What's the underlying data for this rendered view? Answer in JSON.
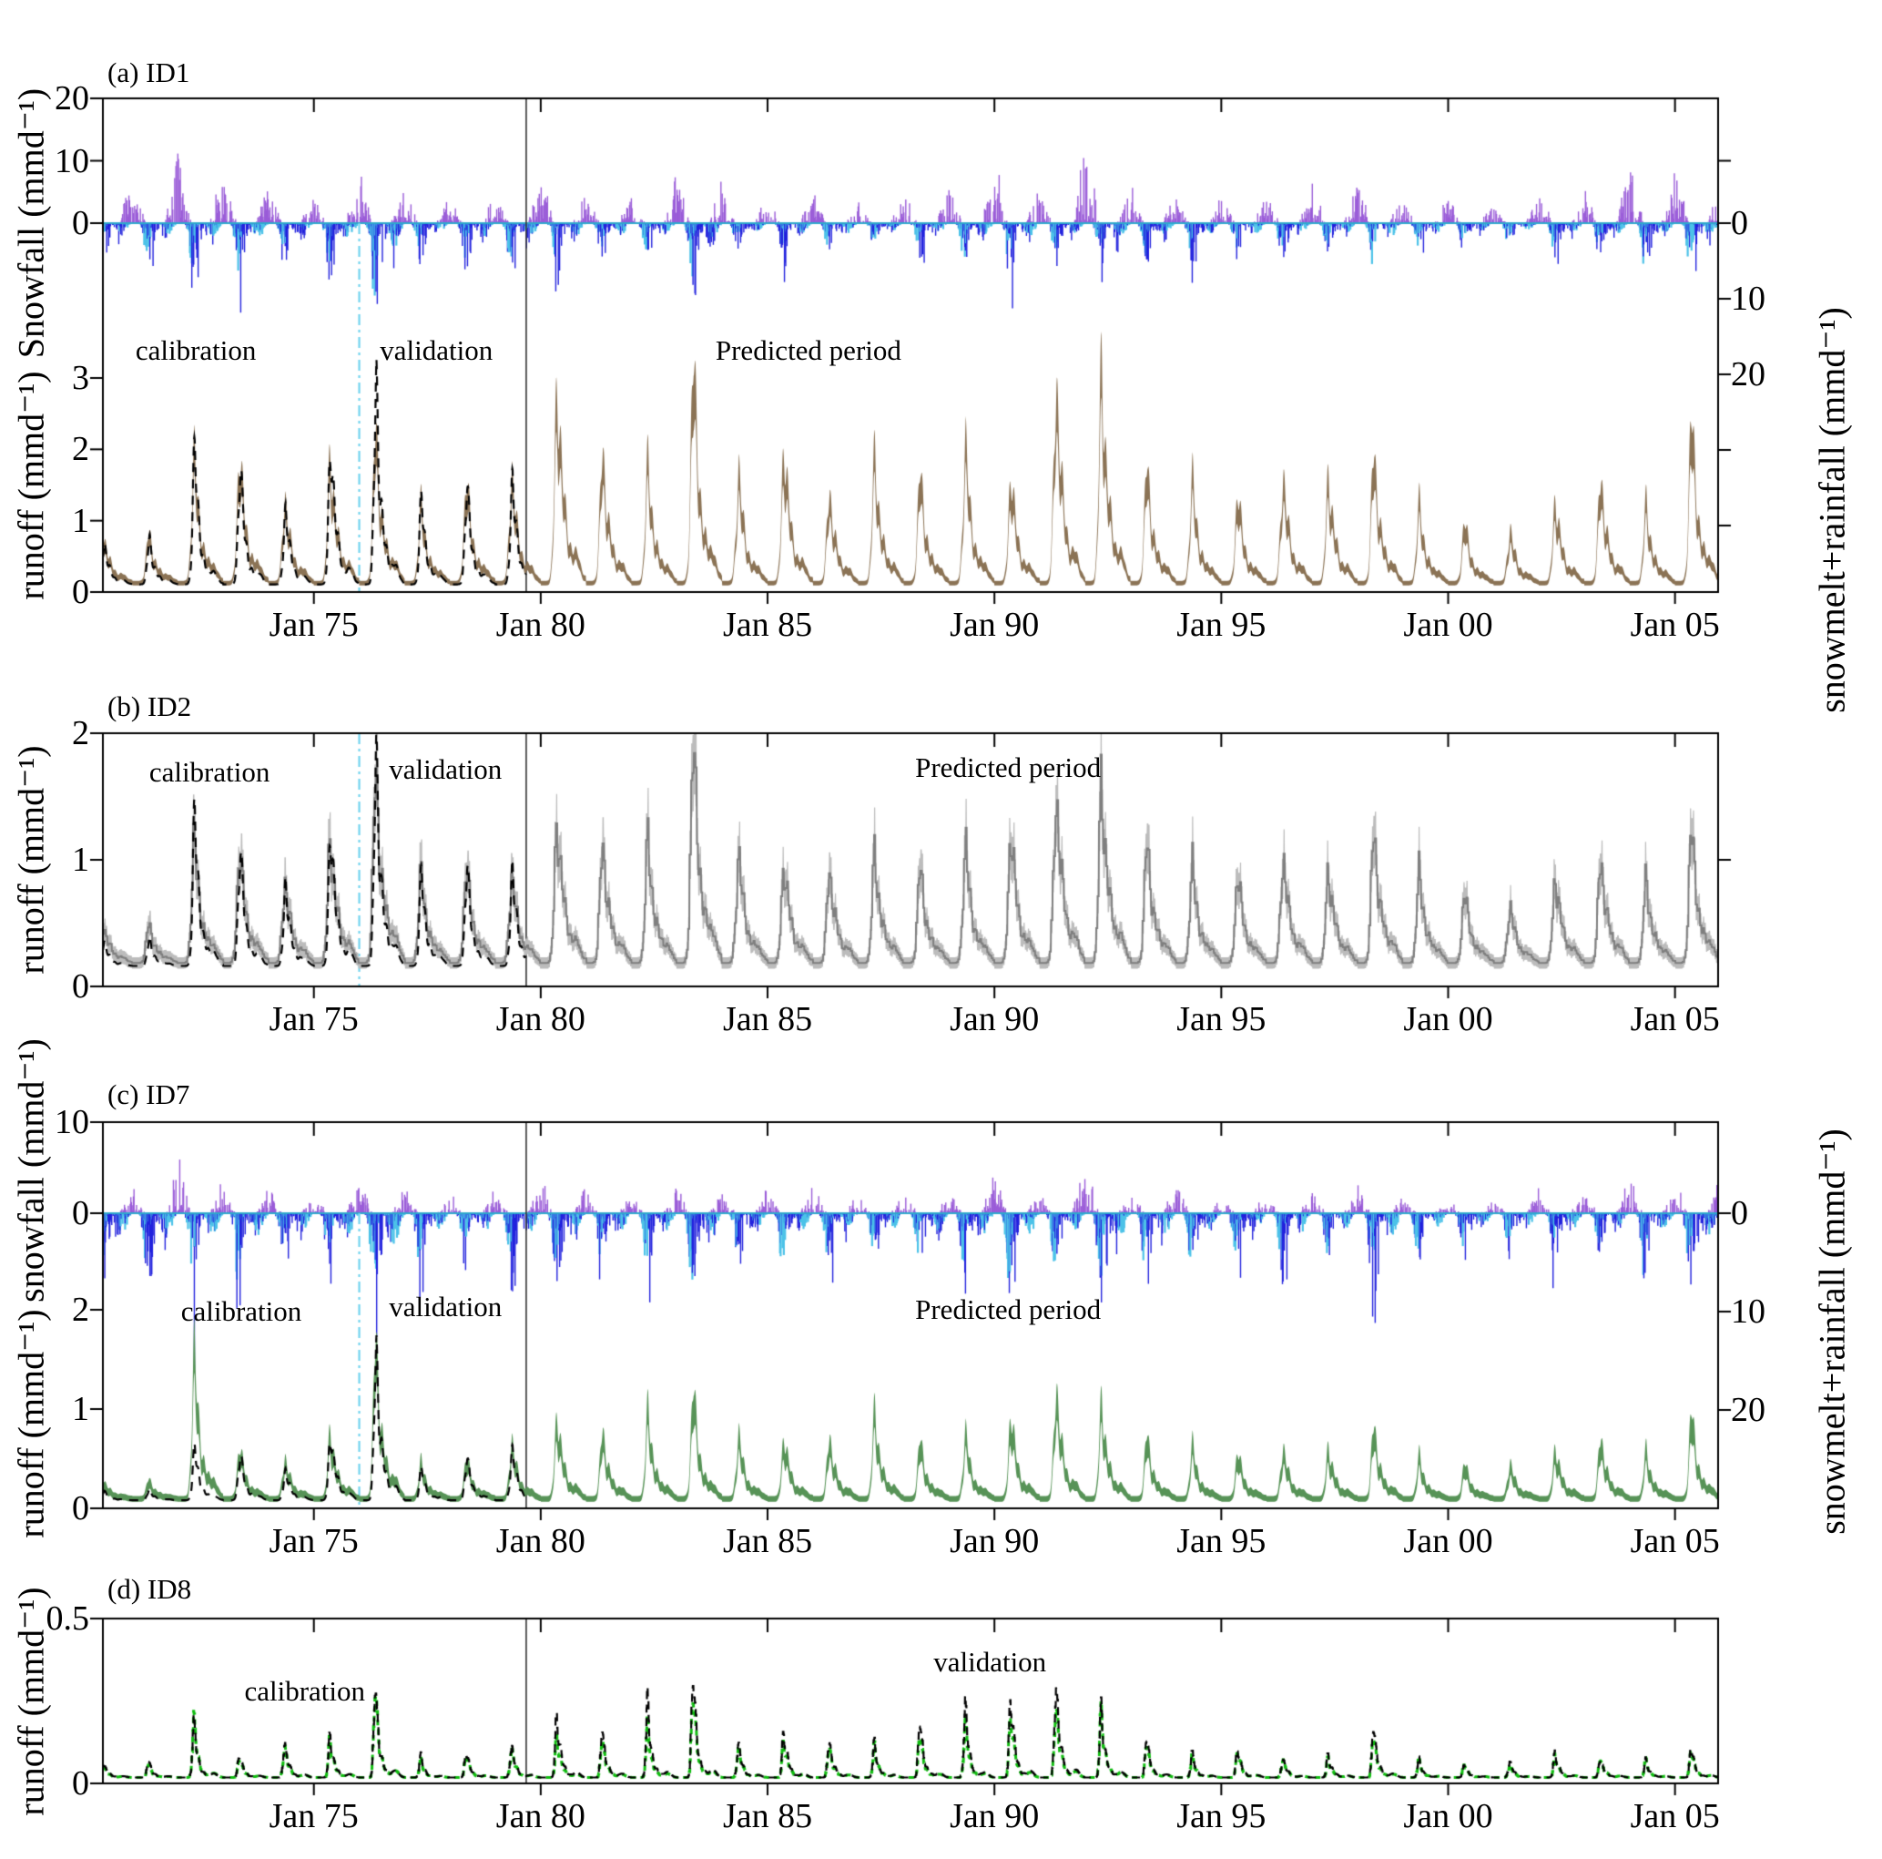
{
  "chart_data": {
    "type": "line",
    "seed": 7,
    "x_axis": {
      "start_year": 1970.35,
      "end_year": 2005.95,
      "tick_years": [
        1975,
        1980,
        1985,
        1990,
        1995,
        2000,
        2005
      ],
      "tick_labels": [
        "Jan 75",
        "Jan 80",
        "Jan 85",
        "Jan 90",
        "Jan 95",
        "Jan 00",
        "Jan 05"
      ]
    },
    "years": [
      1971,
      1972,
      1973,
      1974,
      1975,
      1976,
      1977,
      1978,
      1979,
      1980,
      1981,
      1982,
      1983,
      1984,
      1985,
      1986,
      1987,
      1988,
      1989,
      1990,
      1991,
      1992,
      1993,
      1994,
      1995,
      1996,
      1997,
      1998,
      1999,
      2000,
      2001,
      2002,
      2003,
      2004,
      2005,
      2006
    ],
    "dividers": {
      "calibration_end_year": 1976.0,
      "prediction_start_year": 1979.68
    },
    "colors": {
      "snowfall": "#9a5cd8",
      "melt": "#2121dd",
      "rain": "#4cc2e8",
      "zero_line": "#2fa8cc",
      "divider_calval": "#72d4ee",
      "divider_prediction": "#333333",
      "runoff_a": "#8b7355",
      "runoff_b_fill": "#bcbcbc",
      "runoff_b_line": "#7f7f7f",
      "runoff_c": "#579357",
      "runoff_d_sim": "#10bd10",
      "observed": "#000000"
    },
    "panels": [
      {
        "key": "a",
        "title": "(a) ID1",
        "ylabel_snow": "Snowfall (mmd⁻¹)",
        "ylabel_runoff": "runoff (mmd⁻¹)",
        "ylabel_right": "snowmelt+rainfall (mmd⁻¹)",
        "snow_ylim": [
          0,
          20
        ],
        "melt_ylim": [
          0,
          20
        ],
        "runoff_ylim": [
          0,
          3
        ],
        "snow_ticks": [
          20,
          10,
          0
        ],
        "melt_ticks": [
          0,
          10,
          20
        ],
        "runoff_ticks": [
          3,
          2,
          1,
          0
        ],
        "series": {
          "snowfall_peaks": [
            9,
            15.5,
            11,
            8,
            6,
            9.5,
            8,
            7,
            6.5,
            9,
            7,
            5.5,
            9,
            7.5,
            6,
            7.5,
            5,
            7.5,
            8,
            12,
            8.5,
            17.5,
            7,
            7.5,
            6,
            6.5,
            7.5,
            10.5,
            5.5,
            5,
            4.5,
            7,
            6,
            14,
            11.5,
            7
          ],
          "melt_peaks": [
            10,
            12,
            14,
            9,
            13,
            22,
            9,
            10,
            13,
            12,
            9,
            8,
            16,
            7,
            9,
            8,
            7,
            9,
            10,
            12,
            9,
            13,
            10,
            9,
            8,
            9,
            7,
            11,
            7,
            6,
            6,
            8,
            8,
            12,
            13,
            9
          ],
          "runoff_sim_peaks": [
            0.6,
            1.55,
            1.6,
            1.05,
            1.6,
            1.9,
            0.95,
            1.25,
            1.35,
            2.55,
            1.65,
            1.45,
            2.75,
            1.35,
            1.75,
            1.15,
            1.55,
            1.35,
            1.65,
            1.35,
            2.55,
            2.7,
            1.45,
            1.25,
            1.1,
            1.35,
            1.35,
            1.65,
            0.95,
            0.75,
            0.65,
            1.05,
            1.35,
            0.95,
            2.05,
            1.65
          ],
          "runoff_obs_peaks": [
            0.6,
            1.8,
            1.6,
            1.05,
            2.1,
            2.75,
            1.15,
            1.3,
            1.45
          ]
        },
        "annotations": [
          {
            "label": "calibration",
            "x_year": 1972.4,
            "y_runoff": 3.38
          },
          {
            "label": "validation",
            "x_year": 1977.7,
            "y_runoff": 3.38
          },
          {
            "label": "Predicted period",
            "x_year": 1985.9,
            "y_runoff": 3.38
          }
        ]
      },
      {
        "key": "b",
        "title": "(b) ID2",
        "ylabel_runoff": "runoff (mmd⁻¹)",
        "runoff_ylim": [
          0,
          2
        ],
        "runoff_ticks": [
          2,
          1,
          0
        ],
        "series": {
          "runoff_sim_peaks": [
            0.3,
            0.95,
            0.9,
            0.65,
            1.0,
            1.5,
            0.7,
            0.75,
            0.7,
            1.15,
            0.95,
            0.95,
            1.7,
            0.85,
            0.8,
            0.75,
            0.85,
            0.75,
            0.9,
            1.05,
            1.35,
            1.45,
            0.95,
            0.75,
            0.7,
            0.85,
            0.75,
            1.05,
            0.7,
            0.55,
            0.45,
            0.7,
            0.85,
            0.65,
            1.05,
            0.95
          ],
          "runoff_obs_peaks": [
            0.2,
            1.15,
            0.9,
            0.65,
            1.15,
            1.65,
            0.7,
            0.75,
            0.75
          ]
        },
        "annotations": [
          {
            "label": "calibration",
            "x_year": 1972.7,
            "y_runoff": 1.69
          },
          {
            "label": "validation",
            "x_year": 1977.9,
            "y_runoff": 1.71
          },
          {
            "label": "Predicted period",
            "x_year": 1990.3,
            "y_runoff": 1.73
          }
        ]
      },
      {
        "key": "c",
        "title": "(c) ID7",
        "ylabel_snow": "snowfall (mmd⁻¹)",
        "ylabel_runoff": "runoff (mmd⁻¹)",
        "ylabel_right": "snowmelt+rainfall (mmd⁻¹)",
        "snow_ylim": [
          0,
          10
        ],
        "melt_ylim": [
          0,
          20
        ],
        "runoff_ylim": [
          0,
          2
        ],
        "snow_ticks": [
          10,
          0
        ],
        "melt_ticks": [
          0,
          10,
          20
        ],
        "runoff_ticks": [
          2,
          1,
          0
        ],
        "series": {
          "snowfall_peaks": [
            3.5,
            8,
            4.5,
            4,
            2.5,
            4,
            3.5,
            2.5,
            3,
            4.5,
            3.5,
            3.8,
            4.2,
            3.6,
            3,
            4.5,
            2.5,
            3,
            3.5,
            4.5,
            3,
            7.5,
            3,
            3.5,
            2.5,
            3,
            3.5,
            4.5,
            2.5,
            2,
            2,
            3.5,
            3,
            6.5,
            4,
            4.5
          ],
          "melt_peaks": [
            13,
            16,
            15,
            10,
            12,
            21,
            10,
            11,
            12,
            13,
            11,
            10,
            15,
            9,
            11,
            10,
            9,
            11,
            12,
            14,
            11,
            16,
            12,
            11,
            10,
            11,
            9,
            13,
            9,
            8,
            8,
            10,
            10,
            14,
            14,
            11
          ],
          "runoff_sim_peaks": [
            0.15,
            1.25,
            0.45,
            0.35,
            0.6,
            1.4,
            0.3,
            0.35,
            0.5,
            0.75,
            0.6,
            0.75,
            0.95,
            0.55,
            0.55,
            0.55,
            0.75,
            0.5,
            0.55,
            0.75,
            1.0,
            0.85,
            0.55,
            0.45,
            0.4,
            0.45,
            0.45,
            0.65,
            0.35,
            0.3,
            0.3,
            0.45,
            0.55,
            0.4,
            0.75,
            0.5
          ],
          "runoff_obs_peaks": [
            0.1,
            0.5,
            0.45,
            0.3,
            0.7,
            1.45,
            0.3,
            0.4,
            0.5
          ]
        },
        "annotations": [
          {
            "label": "calibration",
            "x_year": 1973.4,
            "y_runoff": 1.98
          },
          {
            "label": "validation",
            "x_year": 1977.9,
            "y_runoff": 2.03
          },
          {
            "label": "Predicted period",
            "x_year": 1990.3,
            "y_runoff": 2.0
          }
        ]
      },
      {
        "key": "d",
        "title": "(d) ID8",
        "ylabel_runoff": "runoff (mmd⁻¹)",
        "runoff_ylim": [
          0,
          0.5
        ],
        "runoff_ticks": [
          0.5,
          0
        ],
        "series": {
          "runoff_obs_peaks": [
            0.05,
            0.16,
            0.07,
            0.11,
            0.13,
            0.28,
            0.06,
            0.08,
            0.1,
            0.2,
            0.15,
            0.22,
            0.31,
            0.1,
            0.15,
            0.12,
            0.1,
            0.17,
            0.21,
            0.26,
            0.31,
            0.21,
            0.12,
            0.07,
            0.09,
            0.06,
            0.07,
            0.16,
            0.05,
            0.04,
            0.05,
            0.08,
            0.06,
            0.05,
            0.09,
            0.07
          ],
          "runoff_sim_peaks": [
            0.04,
            0.17,
            0.06,
            0.1,
            0.12,
            0.27,
            0.05,
            0.07,
            0.09,
            0.13,
            0.12,
            0.15,
            0.25,
            0.09,
            0.12,
            0.1,
            0.09,
            0.13,
            0.16,
            0.2,
            0.24,
            0.2,
            0.1,
            0.06,
            0.08,
            0.06,
            0.06,
            0.13,
            0.05,
            0.04,
            0.04,
            0.07,
            0.06,
            0.05,
            0.08,
            0.06
          ]
        },
        "annotations": [
          {
            "label": "calibration",
            "x_year": 1974.8,
            "y_runoff": 0.279
          },
          {
            "label": "validation",
            "x_year": 1989.9,
            "y_runoff": 0.367
          }
        ]
      }
    ]
  }
}
